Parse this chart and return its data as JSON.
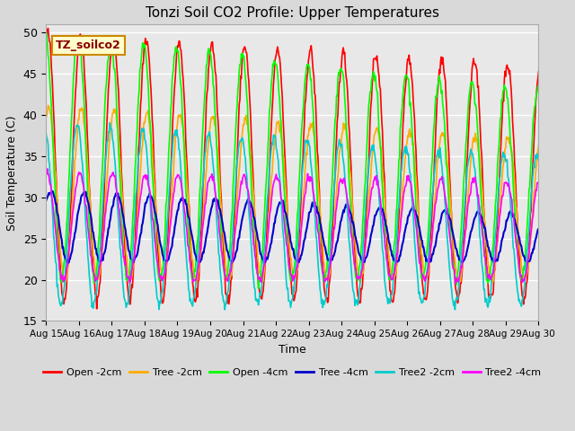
{
  "title": "Tonzi Soil CO2 Profile: Upper Temperatures",
  "xlabel": "Time",
  "ylabel": "Soil Temperature (C)",
  "ylim": [
    15,
    51
  ],
  "yticks": [
    15,
    20,
    25,
    30,
    35,
    40,
    45,
    50
  ],
  "xtick_labels": [
    "Aug 15",
    "Aug 16",
    "Aug 17",
    "Aug 18",
    "Aug 19",
    "Aug 20",
    "Aug 21",
    "Aug 22",
    "Aug 23",
    "Aug 24",
    "Aug 25",
    "Aug 26",
    "Aug 27",
    "Aug 28",
    "Aug 29",
    "Aug 30"
  ],
  "legend_label": "TZ_soilco2",
  "legend_box_facecolor": "#ffffcc",
  "legend_box_edgecolor": "#cc8800",
  "legend_label_color": "#880000",
  "series_colors": {
    "Open -2cm": "#ff0000",
    "Tree -2cm": "#ffaa00",
    "Open -4cm": "#00ff00",
    "Tree -4cm": "#0000cc",
    "Tree2 -2cm": "#00cccc",
    "Tree2 -4cm": "#ff00ff"
  },
  "fig_bg_color": "#d9d9d9",
  "plot_bg_color": "#e8e8e8",
  "grid_color": "#ffffff",
  "n_days": 15,
  "points_per_day": 48,
  "figsize": [
    6.4,
    4.8
  ],
  "dpi": 100
}
